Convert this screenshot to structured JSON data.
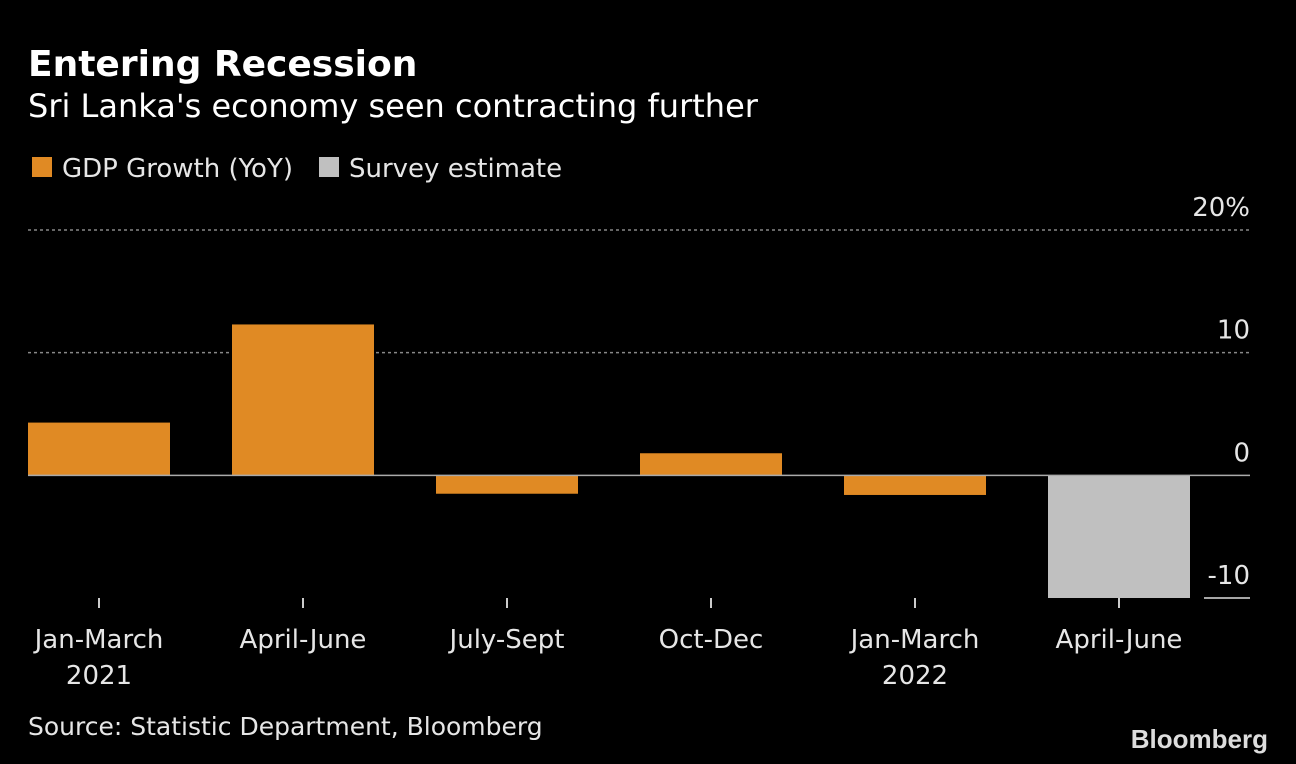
{
  "chart_data": {
    "type": "bar",
    "title": "Entering Recession",
    "subtitle": "Sri Lanka's economy seen contracting further",
    "categories": [
      "Jan-March\n2021",
      "April-June",
      "July-Sept",
      "Oct-Dec",
      "Jan-March\n2022",
      "April-June"
    ],
    "series": [
      {
        "name": "GDP Growth (YoY)",
        "color": "#e08a24",
        "values": [
          4.3,
          12.3,
          -1.5,
          1.8,
          -1.6,
          null
        ]
      },
      {
        "name": "Survey estimate",
        "color": "#c0c0c0",
        "values": [
          null,
          null,
          null,
          null,
          null,
          -10
        ]
      }
    ],
    "ylim": [
      -10,
      20
    ],
    "yticks": [
      {
        "value": 20,
        "label": "20%"
      },
      10,
      0,
      -10
    ],
    "grid": true,
    "source": "Source: Statistic Department, Bloomberg",
    "brand": "Bloomberg"
  }
}
